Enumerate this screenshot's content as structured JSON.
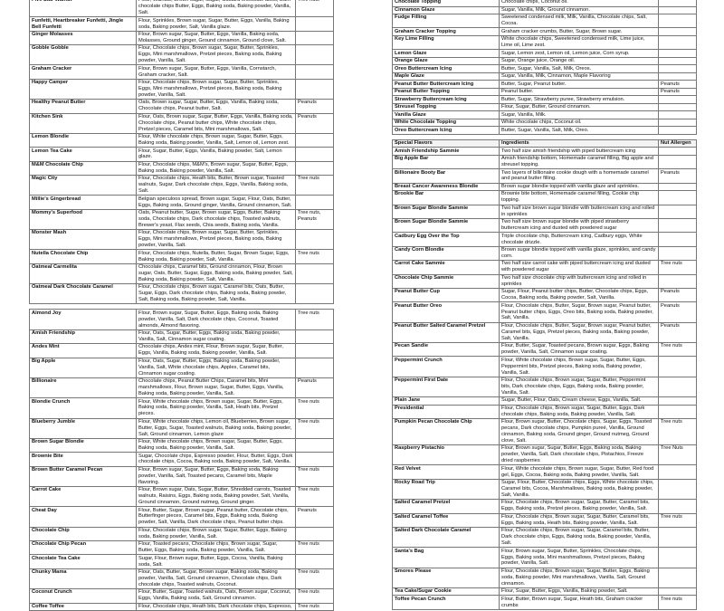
{
  "left_table_1": {
    "rows": [
      [
        "Five Star Walnut",
        "Flour, Walnuts, Brown sugar, Sugar, Guittard chocolate discs, Dark chocolate chips Butter, Eggs, Baking soda, Baking powder, Vanilla, Salt.",
        "Tree nuts"
      ],
      [
        "Funfetti, Heartbreaker Funfetti, Jingle Bell Funfetti",
        "Flour, Sprinkles, Brown sugar, Sugar, Butter, Eggs, Vanilla, Baking soda, Baking powder, Salt, Vanilla glaze.",
        ""
      ],
      [
        "Ginger Molasses",
        "Flour, Brown sugar, Sugar, Butter, Eggs, Vanilla, Baking soda, Molasses, Ground ginger, Ground cinnamon, Ground clove, Salt.",
        ""
      ],
      [
        "Gobble Gobble",
        "Flour, Chocolate chips, Brown sugar, Sugar, Butter, Sprinkles, Eggs, Mini marshmallows, Pretzel pieces, Baking soda, Baking powder, Vanilla, Salt.",
        ""
      ],
      [
        "Graham Cracker",
        "Flour, Brown sugar, Sugar, Butter, Eggs, Vanilla, Cornstarch, Graham cracker, Salt.",
        ""
      ],
      [
        "Happy Camper",
        "Flour, Chocolate chips, Brown sugar, Sugar, Butter, Sprinkles, Eggs, Mini marshmallows, Pretzel pieces, Baking soda, Baking powder, Vanilla, Salt.",
        ""
      ],
      [
        "Healthy Peanut Butter",
        "Oats, Brown sugar, Sugar, Butter, Eggs, Vanilla, Baking soda, Chocolate chips, Peanut butter, Salt.",
        "Peanuts"
      ],
      [
        "Kitchen Sink",
        "Flour, Oats, Brown sugar, Sugar, Butter, Eggs, Vanilla, Baking soda, Chocolate chips, Peanut butter chips, White chocolate chips, Pretzel pieces, Caramel bits, Mini marshmallows, Salt.",
        "Peanuts"
      ],
      [
        "Lemon Blondie",
        "Flour, White chocolate chips, Brown sugar, Sugar, Butter, Eggs, Baking soda, Baking powder, Vanilla, Salt, Lemon oil, Lemon zest.",
        ""
      ],
      [
        "Lemon Tea Cake",
        "Flour, Sugar, Butter, Eggs, Vanilla, Baking powder, Salt, Lemon glaze.",
        ""
      ],
      [
        "M&M Chocolate Chip",
        "Flour, Chocolate chips, M&M's, Brown sugar, Sugar, Butter, Eggs, Baking soda, Baking powder, Vanilla, Salt.",
        ""
      ],
      [
        "Magic City",
        "Flour, Chocolate chips, Heath bits, Butter, Brown sugar, Toasted walnuts, Sugar, Dark chocolate chips, Eggs, Vanilla, Baking soda, Salt.",
        "Tree nuts"
      ],
      [
        "Millie's Gingerbread",
        "Belgian speculoos spread, Brown sugar, Sugar, Flour, Oats, Butter, Eggs, Baking soda, Ground ginger, Vanilla, Ground cinnamon, Salt.",
        ""
      ],
      [
        "Mommy's Superfood",
        "Oats, Peanut butter, Sugar, Brown sugar, Eggs, Butter, Baking soda, Chocolate chips, Dark chocolate chips, Toasted walnuts, Brewer's yeast, Flax seeds, Chia seeds, Baking soda, Vanilla.",
        "Tree nuts, Peanuts"
      ],
      [
        "Monster Mash",
        "Flour, Chocolate chips, Brown sugar, Sugar, Butter, Sprinkles, Eggs, Mini marshmallows, Pretzel pieces, Baking soda, Baking powder, Vanilla, Salt.",
        ""
      ],
      [
        "Nutella Chocolate Chip",
        "Flour, Chocolate chips, Nutella, Butter, Sugar, Brown Sugar, Eggs, Baking soda, Baking powder, Salt, Vanilla.",
        "Tree nuts"
      ],
      [
        "Oatmeal Carmelita",
        "Chocolate chips, Caramel bits, Ground cinnamon, Flour, Brown sugar, Oats, Butter, Sugar, Eggs, Baking soda, Baking powder, Salt, Baking soda, Baking powder, Salt, Vanilla.",
        ""
      ],
      [
        "Oatmeal Dark Chocolate Caramel",
        "Flour, Chocolate chips, Brown sugar, Caramel bits, Oats, Butter, Sugar, Eggs, Dark chocolate chips, Baking soda, Baking powder, Salt, Baking soda, Baking powder, Salt, Vanilla.",
        ""
      ]
    ]
  },
  "left_table_2": {
    "rows": [
      [
        "Almond Joy",
        "Flour, Brown sugar, Sugar, Butter, Eggs, Baking soda, Baking powder, Vanilla, Salt, Dark chocolate chips, Coconut, Toasted almonds, Almond flavoring.",
        "Tree nuts"
      ],
      [
        "Amish Friendship",
        "Flour, Oats, Sugar, Butter, Eggs, Baking soda, Baking powder, Vanilla, Salt, Cinnamon sugar coating.",
        ""
      ],
      [
        "Andes Mint",
        "Chocolate chips, Andes mint, Flour, Brown sugar, Sugar, Butter, Eggs, Vanilla, Baking soda, Baking powder, Vanilla, Salt.",
        ""
      ],
      [
        "Big Apple",
        "Flour, Oats, Sugar, Butter, Eggs, Baking soda, Baking powder, Vanilla, Salt, White chocolate chips, Apples, Caramel bits, Cinnamon sugar coating.",
        ""
      ],
      [
        "Billionaire",
        "Chocolate chips, Peanut Butter Chips, Caramel bits, Mini marshmallows, Flour, Brown sugar, Sugar, Butter, Eggs, Vanilla, Baking soda, Baking powder, Vanilla, Salt.",
        "Peanuts"
      ],
      [
        "Blondie Crunch",
        "Flour, White chocolate chips, Brown sugar, Sugar, Butter, Eggs, Baking soda, Baking powder, Vanilla, Salt, Heath bits, Pretzel pieces.",
        "Tree nuts"
      ],
      [
        "Blueberry Jumble",
        "Flour, White chocolate chips, Lemon oil, Blueberries, Brown sugar, Butter, Eggs, Sugar, Toasted walnuts, Baking soda, Baking powder, Salt, Ground cinnamon, Lemon glaze",
        "Tree nuts"
      ],
      [
        "Brown Sugar Blondie",
        "Flour, White chocolate chips, Brown sugar, Sugar, Butter, Eggs, Baking soda, Baking powder, Vanilla, Salt.",
        ""
      ],
      [
        "Brownie Bite",
        "Sugar, Chocolate chips, Espresso powder, Flour, Butter, Eggs, Dark chocolate chips, Cocoa, Baking soda, Baking powder, Salt, Vanilla.",
        ""
      ],
      [
        "Brown Butter Caramel Pecan",
        "Flour, Brown sugar, Sugar, Butter, Eggs, Baking soda, Baking powder, Vanilla, Salt, Toasted pecans, Caramel bits, Maple flavoring.",
        "Tree nuts"
      ],
      [
        "Carrot Cake",
        "Flour, Brown sugar, Oats, Sugar, Butter, Shredded carrots, Toasted walnuts, Raisins, Eggs, Baking soda, Baking powder, Salt, Vanilla, Ground cinnamon, Ground nutmeg, Ground ginger.",
        "Tree nuts"
      ],
      [
        "Cheat Day",
        "Flour, Butter, Sugar, Brown sugar, Peanut butter, Chocolate chips, Butterfinger pieces, Caramel bits, Eggs, Baking soda, Baking powder, Salt, Vanilla, Dark chocolate chips, Peanut butter chips.",
        "Peanuts"
      ],
      [
        "Chocolate Chip",
        "Flour, Chocolate chips, Brown sugar, Sugar, Butter, Eggs, Baking soda, Baking powder, Vanilla, Salt.",
        ""
      ],
      [
        "Chocolate Chip Pecan",
        "Flour, Toasted pecans, Chocolate chips, Brown sugar, Sugar, Butter, Eggs, Baking soda, Baking powder, Vanilla, Salt.",
        "Tree nuts"
      ],
      [
        "Chocolate Tea Cake",
        "Sugar, Flour, Brown sugar, Butter, Eggs, Cocoa, Vanilla, Baking soda, Salt.",
        ""
      ],
      [
        "Chunky Mama",
        "Flour, Oats, Butter, Sugar, Brown sugar, Baking soda, Baking powder, Vanilla, Salt, Ground cinnamon, Chocolate chips, Dark chocolate chips, Toasted walnuts, Coconut.",
        "Tree nuts"
      ],
      [
        "Coconut Crunch",
        "Flour, Butter, Sugar, Toasted walnuts, Oats, Brown sugar, Coconut, Eggs, Vanilla, Baking soda, Salt, Ground cinnamon.",
        "Tree nuts"
      ],
      [
        "Coffee Toffee",
        "Flour, Chocolate chips, Heath bits, Dark chocolate chips, Espresso,",
        "Tree nuts"
      ]
    ]
  },
  "right_table_1": {
    "rows": [
      [
        "Chocolate Topping",
        "Chocolate chips, Coconut oil.",
        ""
      ],
      [
        "Cinnamon Glaze",
        "Sugar, Vanilla, Milk, Ground cinnamon.",
        ""
      ],
      [
        "Fudge Filling",
        "Sweetened condensed milk, Milk, Vanilla, Chocolate chips, Salt, Cocoa.",
        ""
      ],
      [
        "Graham Cracker Topping",
        "Graham cracker crumbs, Butter, Sugar, Brown sugar.",
        ""
      ],
      [
        "Key Lime Filling",
        "White chocolate chips, Sweetened condensed milk, Lime juice, Lime oil, Lime zest.",
        ""
      ],
      [
        "Lemon Glaze",
        "Sugar, Lemon zest, Lemon oil, Lemon juice, Corn syrup.",
        ""
      ],
      [
        "Orange Glaze",
        "Sugar, Orange juice, Orange oil.",
        ""
      ],
      [
        "Oreo Buttercream Icing",
        "Butter, Sugar, Vanilla, Salt, Milk, Oreos.",
        ""
      ],
      [
        "Maple Glaze",
        "Sugar, Vanilla, Milk, Cinnamon, Maple Flavoring",
        ""
      ],
      [
        "Peanut Butter Buttercream Icing",
        "Butter, Sugar, Peanut butter.",
        "Peanuts"
      ],
      [
        "Peanut Butter Topping",
        "Peanut butter.",
        "Peanuts"
      ],
      [
        "Strawberry Buttercream Icing",
        "Butter, Sugar, Strawberry puree, Strawberry emulsion.",
        ""
      ],
      [
        "Streusel Topping",
        "Flour, Sugar, Butter, Ground cinnamon.",
        ""
      ],
      [
        "Vanilla Glaze",
        "Sugar, Vanilla, Milk.",
        ""
      ],
      [
        "White Chocolate Topping",
        "White chocolate chips, Coconut oil.",
        ""
      ],
      [
        "Oreo Buttercream Icing",
        "Butter, Sugar, Vanilla, Salt, Milk, Oreo.",
        ""
      ]
    ]
  },
  "right_table_2": {
    "header": [
      "Special Flavors",
      "Ingredients",
      "Nut Allergen"
    ],
    "rows": [
      [
        "Amish Friendship Sammie",
        "Two half size amish friendship with piped buttercream icing",
        ""
      ],
      [
        "Big Apple Bar",
        "Amish friendship bottom, Homemade caramel filling, Big apple and streusel topping.",
        ""
      ],
      [
        "Billionaire Booty Bar",
        "Two layers of billionaire cookie dough with a homemade caramel and peanut butter filling.",
        "Peanuts"
      ],
      [
        "Breast Cancer Awareness Blondie",
        "Brown sugar blondie topped with vanilla glaze and sprinkles.",
        ""
      ],
      [
        "Brookie Bar",
        "Brownie bite bottom, Homemade caramel filling, Cookie chip topping.",
        ""
      ],
      [
        "Brown Sugar Blondie Sammie",
        "Two half size brown sugar blondie with buttercream icing and rolled in sprinkles",
        ""
      ],
      [
        "Brown Sugar Blondie Sammie",
        "Two half size brown sugar blondie with piped strawberry buttercream icing and dusted with powdered sugar",
        ""
      ],
      [
        "Cadbury Egg Over the Top",
        "Triple chocolate chip, Buttercream icing, Cadbury eggs, White chocolate drizzle.",
        ""
      ],
      [
        "Candy Corn Blondie",
        "Brown sugar blondie topped with vanilla glaze, sprinkles, and candy corn.",
        ""
      ],
      [
        "Carrot Cake Sammie",
        "Two half size carrot cake with piped buttercream icing and dusted with powdered sugar",
        "Tree nuts"
      ],
      [
        "Chocolate Chip Sammie",
        "Two half size chocolate chip with buttercream icing and rolled in sprinkles",
        ""
      ],
      [
        "Peanut Butter Cup",
        "Sugar, Flour, Peanut butter chips, Butter, Chocolate chips, Eggs, Cocoa, Baking soda, Baking powder, Salt, Vanilla.",
        "Peanuts"
      ],
      [
        "Peanut Butter Oreo",
        "Flour, Chocolate chips, Butter, Sugar, Brown sugar, Peanut butter, Peanut butter chips, Eggs, Oreo bits, Baking soda, Baking powder, Salt, Vanilla.",
        "Peanuts"
      ],
      [
        "Peanut Butter Salted Caramel Pretzel",
        "Flour, Chocolate chips, Butter, Sugar, Brown sugar, Peanut butter, Caramel bits, Eggs, Pretzel pieces, Baking soda, Baking powder, Salt, Vanilla.",
        "Peanuts"
      ],
      [
        "Pecan Sandie",
        "Flour, Butter, Sugar, Toasted pecans, Brown sugar, Eggs, Baking powder, Vanilla, Salt, Cinnamon sugar coating.",
        "Tree nuts"
      ],
      [
        "Peppermint Crunch",
        "Flour, White chocolate chips, Brown sugar, Sugar, Butter, Eggs, Peppermint bits, Pretzel pieces, Baking soda, Baking powder, Vanilla, Salt.",
        ""
      ],
      [
        "Peppermint First Date",
        "Flour, Chocolate chips, Brown sugar, Sugar, Butter, Peppermint bits, Dark chocolate chips, Eggs, Baking soda, Baking powder, Vanilla, Salt.",
        ""
      ],
      [
        "Plain Jane",
        "Sugar, Butter, Flour, Oats, Cream cheese, Eggs, Vanilla, Salt.",
        ""
      ],
      [
        "Presidential",
        "Flour, Chocolate chips, Brown sugar, Sugar, Butter, Eggs, Dark chocolate chips, Baking soda, Baking powder, Vanilla, Salt.",
        ""
      ],
      [
        "Pumpkin Pecan Chocolate Chip",
        "Flour, Brown sugar, Butter, Chocolate chips, Sugar, Eggs, Toasted pecans, Dark chocolate chips, Pumpkin pureé, Vanilla, Ground cinnamon, Baking soda, Ground ginger, Ground nutmeg, Ground clove, Salt.",
        "Tree nuts"
      ],
      [
        "Raspberry Pistachio",
        "Flour, Brown sugar, Sugar, Butter, Eggs, Baking soda, Baking powder, Vanilla, Salt, Dark chocolate chips, Pistachios, Freeze dried raspberries",
        "Tree Nuts"
      ],
      [
        "Red Velvet",
        "Flour, White chocolate chips, Brown sugar, Sugar, Butter, Red food gel, Eggs, Cocoa, Baking soda, Baking powder, Vanilla, Salt.",
        ""
      ],
      [
        "Rocky Road Trip",
        "Sugar, Flour, Butter, Chocolate chips, Eggs, White chocolate chips, Caramel bits, Cocoa, Marshmallows, Baking soda, Baking powder, Salt, Vanilla.",
        ""
      ],
      [
        "Salted Caramel Pretzel",
        "Flour, Chocolate chips, Brown sugar, Sugar, Butter, Caramel bits, Eggs, Baking soda, Pretzel pieces, Baking powder, Vanilla, Salt.",
        ""
      ],
      [
        "Salted Caramel Toffee",
        "Flour, Chocolate chips, Brown sugar, Sugar, Butter, Caramel bits, Eggs, Baking soda, Heath bits, Baking powder, Vanilla, Salt.",
        "Tree nuts"
      ],
      [
        "Salted Dark Chocolate Caramel",
        "Flour, Chocolate chips, Brown sugar, Sugar, Caramel bits, Butter, Dark chocolate chips, Eggs, Baking soda, Baking powder, Vanilla, Salt.",
        ""
      ],
      [
        "Santa's Bag",
        "Flour, Brown sugar, Sugar, Butter, Sprinkles, Chocolate chips, Eggs, Baking soda, Mini marshmallows, Pretzel pieces, Baking powder, Vanilla, Salt.",
        ""
      ],
      [
        "Smores Please",
        "Flour, Chocolate chips, Brown sugar, Sugar, Butter, Eggs, Baking soda, Baking powder, Mini marshmallows, Vanilla, Salt, Ground cinnamon.",
        ""
      ],
      [
        "Tea Cake/Sugar Cookie",
        "Flour, Sugar, Butter, Eggs, Vanilla, Baking powder, Salt.",
        ""
      ],
      [
        "Toffee Pecan Crunch",
        "Flour, Butter, Brown sugar, Sugar, Heath bits, Graham cracker crumbs",
        "Tree nuts"
      ]
    ]
  }
}
